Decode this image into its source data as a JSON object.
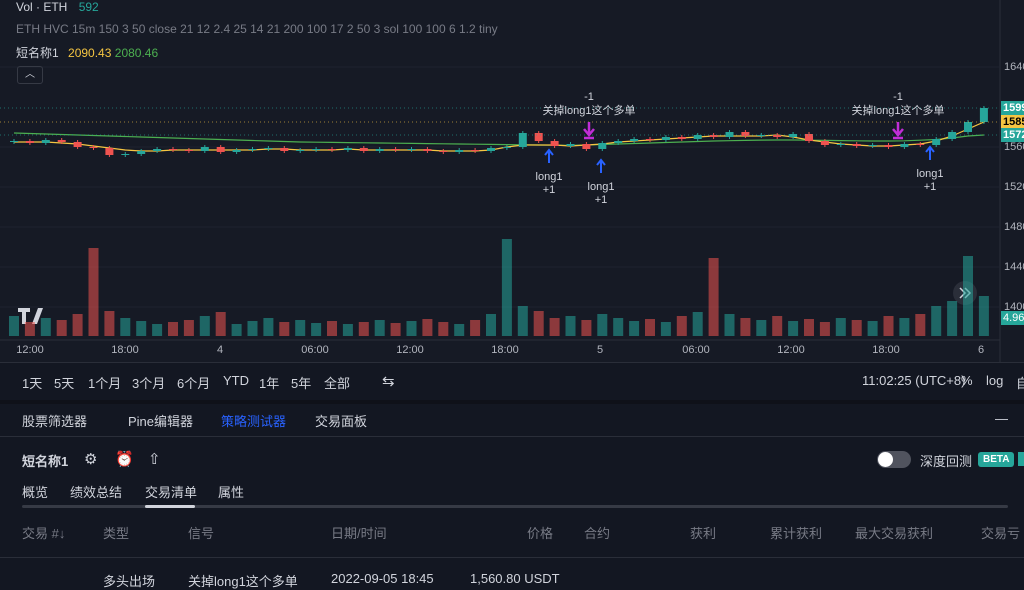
{
  "header": {
    "vol_label": "Vol · ETH",
    "vol_value": "592",
    "indicator": "ETH HVC 15m 150 3 50 close 21 12 2.4 25 14 21 200 100 17 2 50 3 sol 100 100 6 1.2 tiny",
    "strategy_name": "短名称1",
    "strategy_value_1": "2090.43",
    "strategy_value_2": "2080.46"
  },
  "chart": {
    "type": "candlestick",
    "closes": [
      1566,
      1564,
      1567,
      1565,
      1560,
      1559,
      1552,
      1553,
      1556,
      1558,
      1557,
      1556,
      1560,
      1555,
      1557,
      1558,
      1559,
      1556,
      1557,
      1558,
      1557,
      1559,
      1556,
      1558,
      1557,
      1558,
      1556,
      1555,
      1557,
      1556,
      1559,
      1560,
      1574,
      1566,
      1561,
      1563,
      1558,
      1564,
      1566,
      1568,
      1567,
      1570,
      1568,
      1572,
      1570,
      1575,
      1571,
      1572,
      1570,
      1573,
      1566,
      1562,
      1563,
      1561,
      1562,
      1560,
      1563,
      1562,
      1568,
      1575,
      1585,
      1599
    ],
    "volumes": [
      20,
      14,
      18,
      16,
      22,
      88,
      25,
      18,
      15,
      12,
      14,
      16,
      20,
      24,
      12,
      15,
      18,
      14,
      16,
      13,
      15,
      12,
      14,
      16,
      13,
      15,
      17,
      14,
      12,
      16,
      22,
      97,
      30,
      25,
      18,
      20,
      16,
      22,
      18,
      15,
      17,
      14,
      20,
      24,
      78,
      22,
      18,
      16,
      20,
      15,
      17,
      14,
      18,
      16,
      15,
      20,
      18,
      22,
      30,
      35,
      80,
      40
    ],
    "ma_lines": [
      {
        "color": "#4caf50",
        "values": [
          1574,
          1573.5,
          1573,
          1572.5,
          1572,
          1571.5,
          1571,
          1570.5,
          1570,
          1569.5,
          1569,
          1568.5,
          1568,
          1567.5,
          1567,
          1566.5,
          1566,
          1565.5,
          1565,
          1564.8,
          1564.6,
          1564.4,
          1564.2,
          1564,
          1563.8,
          1563.6,
          1563.4,
          1563.2,
          1563,
          1562.8,
          1562.6,
          1562.4,
          1562.2,
          1562,
          1561.8,
          1561.6,
          1562,
          1562.5,
          1563,
          1563.5,
          1564,
          1564.5,
          1565,
          1565.5,
          1566,
          1566.3,
          1566.6,
          1566.9,
          1567,
          1567,
          1566.8,
          1566.6,
          1566.4,
          1566.2,
          1566,
          1566,
          1566.2,
          1566.8,
          1567.5,
          1569,
          1571,
          1572
        ]
      },
      {
        "color": "#f5c542",
        "values": [
          1565,
          1565,
          1565,
          1564,
          1563,
          1561,
          1559,
          1557,
          1556,
          1556,
          1557,
          1557,
          1557,
          1557,
          1557,
          1557,
          1558,
          1558,
          1557,
          1557,
          1557,
          1558,
          1557,
          1557,
          1557,
          1557,
          1557,
          1556,
          1556,
          1556,
          1557,
          1560,
          1562,
          1562,
          1562,
          1561,
          1562,
          1563,
          1565,
          1566,
          1567,
          1568,
          1569,
          1570,
          1571,
          1571,
          1571,
          1571,
          1572,
          1570,
          1567,
          1565,
          1563,
          1562,
          1561,
          1561,
          1562,
          1563,
          1566,
          1571,
          1578,
          1585
        ]
      }
    ],
    "up_color": "#26a69a",
    "down_color": "#ef5350",
    "ylim": [
      1367,
      1707
    ],
    "yticks": [
      1640,
      1560,
      1520,
      1480,
      1440,
      1400
    ],
    "vlim": [
      0,
      100
    ],
    "price_tags": [
      {
        "value": 1599,
        "color": "#26a69a"
      },
      {
        "value": 1585,
        "color": "#f5c542"
      },
      {
        "value": 1572,
        "color": "#26a69a"
      }
    ],
    "volume_tag": "4.96",
    "time_labels": [
      "12:00",
      "18:00",
      "4",
      "06:00",
      "12:00",
      "18:00",
      "5",
      "06:00",
      "12:00",
      "18:00",
      "6"
    ],
    "exits": [
      {
        "qty": "-1",
        "label": "关掉long1这个多单"
      },
      {
        "qty": "-1",
        "label": "关掉long1这个多单"
      }
    ],
    "entries": [
      {
        "label": "long1",
        "qty": "+1"
      },
      {
        "label": "long1",
        "qty": "+1"
      },
      {
        "label": "long1",
        "qty": "+1"
      }
    ]
  },
  "toolbar": {
    "ranges": [
      "1天",
      "5天",
      "1个月",
      "3个月",
      "6个月",
      "YTD",
      "1年",
      "5年",
      "全部"
    ],
    "time": "11:02:25 (UTC+8)",
    "percent": "%",
    "log": "log",
    "auto": "自"
  },
  "tabs": [
    "股票筛选器",
    "Pine编辑器",
    "策略测试器",
    "交易面板"
  ],
  "strategy": {
    "name": "短名称1",
    "deep": "深度回测",
    "badge": "BETA"
  },
  "subtabs": [
    "概览",
    "绩效总结",
    "交易清单",
    "属性"
  ],
  "table": {
    "columns": [
      "交易 #↓",
      "类型",
      "信号",
      "日期/时间",
      "价格",
      "合约",
      "获利",
      "累计获利",
      "最大交易获利",
      "交易亏"
    ],
    "rows": [
      {
        "type": "多头出场",
        "signal": "关掉long1这个多单",
        "datetime": "2022-09-05 18:45",
        "price": "1,560.80 USDT"
      }
    ]
  }
}
